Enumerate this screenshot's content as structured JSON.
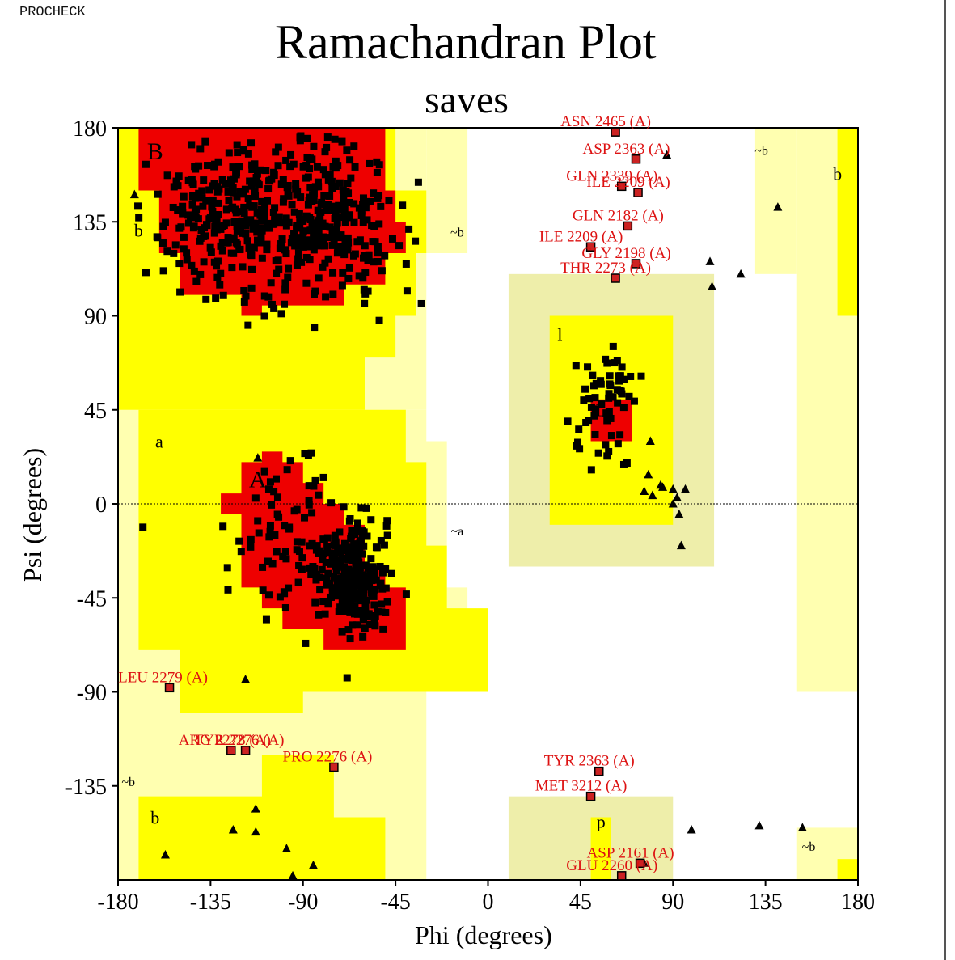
{
  "header": {
    "program": "PROCHECK"
  },
  "chart_data": {
    "type": "scatter",
    "title": "Ramachandran Plot",
    "subtitle": "saves",
    "xlabel": "Phi (degrees)",
    "ylabel": "Psi (degrees)",
    "xlim": [
      -180,
      180
    ],
    "ylim": [
      -180,
      180
    ],
    "xticks": [
      -180,
      -135,
      -90,
      -45,
      0,
      45,
      90,
      135,
      180
    ],
    "yticks": [
      180,
      135,
      90,
      45,
      0,
      -45,
      -90,
      -135
    ],
    "grid": false,
    "colors": {
      "core": "#ee0000",
      "allowed": "#ffff00",
      "generous": "#ffffb0",
      "gly_region": "#eeeeaa",
      "outlier": "#cc2222",
      "label": "#dd1111"
    },
    "region_labels": [
      {
        "text": "B",
        "phi": -162,
        "psi": 165
      },
      {
        "text": "b",
        "phi": -170,
        "psi": 128
      },
      {
        "text": "~b",
        "phi": -15,
        "psi": 128
      },
      {
        "text": "a",
        "phi": -160,
        "psi": 27
      },
      {
        "text": "A",
        "phi": -112,
        "psi": 8
      },
      {
        "text": "~a",
        "phi": -15,
        "psi": -15
      },
      {
        "text": "l",
        "phi": 35,
        "psi": 78
      },
      {
        "text": "L",
        "phi": 55,
        "psi": 42
      },
      {
        "text": "~b",
        "phi": 133,
        "psi": 167
      },
      {
        "text": "b",
        "phi": 170,
        "psi": 155
      },
      {
        "text": "~b",
        "phi": -175,
        "psi": -135
      },
      {
        "text": "b",
        "phi": -162,
        "psi": -153
      },
      {
        "text": "p",
        "phi": 55,
        "psi": -155
      },
      {
        "text": "~b",
        "phi": 156,
        "psi": -166
      }
    ],
    "outliers": [
      {
        "label": "LEU 2279 (A)",
        "phi": -155,
        "psi": -88
      },
      {
        "label": "ARG 2278 (A)",
        "phi": -125,
        "psi": -118
      },
      {
        "label": "TYR 2276 (A)",
        "phi": -118,
        "psi": -118
      },
      {
        "label": "PRO 2276 (A)",
        "phi": -75,
        "psi": -126
      },
      {
        "label": "ASN 2465 (A)",
        "phi": 62,
        "psi": 178
      },
      {
        "label": "ASP 2363 (A)",
        "phi": 72,
        "psi": 165
      },
      {
        "label": "GLN 2339 (A)",
        "phi": 65,
        "psi": 152
      },
      {
        "label": "ILE 2209 (A)",
        "phi": 73,
        "psi": 149
      },
      {
        "label": "GLN 2182 (A)",
        "phi": 68,
        "psi": 133
      },
      {
        "label": "ILE 2209 (A)",
        "phi": 50,
        "psi": 123
      },
      {
        "label": "GLY 2198 (A)",
        "phi": 72,
        "psi": 115
      },
      {
        "label": "THR 2273 (A)",
        "phi": 62,
        "psi": 108
      },
      {
        "label": "TYR 2363 (A)",
        "phi": 54,
        "psi": -128
      },
      {
        "label": "MET 3212 (A)",
        "phi": 50,
        "psi": -140
      },
      {
        "label": "ASP 2161 (A)",
        "phi": 74,
        "psi": -172
      },
      {
        "label": "GLU 2260 (A)",
        "phi": 65,
        "psi": -178
      }
    ],
    "gly_points": [
      [
        -172,
        148
      ],
      [
        -157,
        -168
      ],
      [
        -118,
        -84
      ],
      [
        -124,
        -156
      ],
      [
        -113,
        -157
      ],
      [
        -113,
        -146
      ],
      [
        -98,
        -165
      ],
      [
        -95,
        -178
      ],
      [
        -85,
        -173
      ],
      [
        76,
        -172
      ],
      [
        79,
        30
      ],
      [
        78,
        14
      ],
      [
        84,
        9
      ],
      [
        76,
        6
      ],
      [
        80,
        4
      ],
      [
        85,
        8
      ],
      [
        90,
        7
      ],
      [
        92,
        3
      ],
      [
        96,
        7
      ],
      [
        93,
        -5
      ],
      [
        90,
        0
      ],
      [
        94,
        -20
      ],
      [
        99,
        -156
      ],
      [
        132,
        -154
      ],
      [
        153,
        -155
      ],
      [
        108,
        116
      ],
      [
        123,
        110
      ],
      [
        141,
        142
      ],
      [
        87,
        167
      ],
      [
        109,
        104
      ],
      [
        -112,
        22
      ]
    ]
  }
}
